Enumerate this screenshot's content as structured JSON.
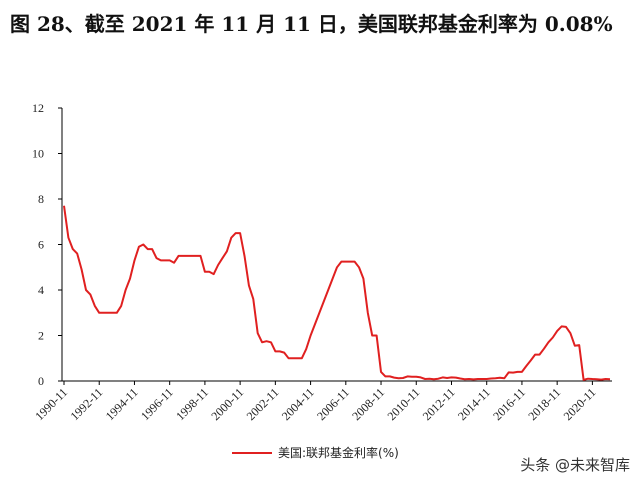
{
  "chart_data": {
    "type": "line",
    "title": "图 28、截至 2021 年 11 月 11 日，美国联邦基金利率为 0.08%",
    "x": [
      "1990-11",
      "1991-02",
      "1991-05",
      "1991-08",
      "1991-11",
      "1992-02",
      "1992-05",
      "1992-08",
      "1992-11",
      "1993-02",
      "1993-05",
      "1993-08",
      "1993-11",
      "1994-02",
      "1994-05",
      "1994-08",
      "1994-11",
      "1995-02",
      "1995-05",
      "1995-08",
      "1995-11",
      "1996-02",
      "1996-05",
      "1996-08",
      "1996-11",
      "1997-02",
      "1997-05",
      "1997-08",
      "1997-11",
      "1998-02",
      "1998-05",
      "1998-08",
      "1998-11",
      "1999-02",
      "1999-05",
      "1999-08",
      "1999-11",
      "2000-02",
      "2000-05",
      "2000-08",
      "2000-11",
      "2001-02",
      "2001-05",
      "2001-08",
      "2001-11",
      "2002-02",
      "2002-05",
      "2002-08",
      "2002-11",
      "2003-02",
      "2003-05",
      "2003-08",
      "2003-11",
      "2004-02",
      "2004-05",
      "2004-08",
      "2004-11",
      "2005-02",
      "2005-05",
      "2005-08",
      "2005-11",
      "2006-02",
      "2006-05",
      "2006-08",
      "2006-11",
      "2007-02",
      "2007-05",
      "2007-08",
      "2007-11",
      "2008-02",
      "2008-05",
      "2008-08",
      "2008-11",
      "2009-02",
      "2009-05",
      "2009-08",
      "2009-11",
      "2010-02",
      "2010-05",
      "2010-08",
      "2010-11",
      "2011-02",
      "2011-05",
      "2011-08",
      "2011-11",
      "2012-02",
      "2012-05",
      "2012-08",
      "2012-11",
      "2013-02",
      "2013-05",
      "2013-08",
      "2013-11",
      "2014-02",
      "2014-05",
      "2014-08",
      "2014-11",
      "2015-02",
      "2015-05",
      "2015-08",
      "2015-11",
      "2016-02",
      "2016-05",
      "2016-08",
      "2016-11",
      "2017-02",
      "2017-05",
      "2017-08",
      "2017-11",
      "2018-02",
      "2018-05",
      "2018-08",
      "2018-11",
      "2019-02",
      "2019-05",
      "2019-08",
      "2019-11",
      "2020-02",
      "2020-05",
      "2020-08",
      "2020-11",
      "2021-02",
      "2021-05",
      "2021-08",
      "2021-11"
    ],
    "series": [
      {
        "name": "美国:联邦基金利率(%)",
        "color": "#e02020",
        "values": [
          7.7,
          6.3,
          5.8,
          5.6,
          4.9,
          4.0,
          3.8,
          3.3,
          3.0,
          3.0,
          3.0,
          3.0,
          3.0,
          3.3,
          4.0,
          4.5,
          5.3,
          5.9,
          6.0,
          5.8,
          5.8,
          5.4,
          5.3,
          5.3,
          5.3,
          5.2,
          5.5,
          5.5,
          5.5,
          5.5,
          5.5,
          5.5,
          4.8,
          4.8,
          4.7,
          5.1,
          5.4,
          5.7,
          6.3,
          6.5,
          6.5,
          5.5,
          4.2,
          3.6,
          2.1,
          1.7,
          1.75,
          1.7,
          1.3,
          1.3,
          1.25,
          1.0,
          1.0,
          1.0,
          1.0,
          1.4,
          2.0,
          2.5,
          3.0,
          3.5,
          4.0,
          4.5,
          5.0,
          5.25,
          5.25,
          5.25,
          5.25,
          5.0,
          4.5,
          3.0,
          2.0,
          2.0,
          0.4,
          0.2,
          0.2,
          0.15,
          0.12,
          0.13,
          0.2,
          0.19,
          0.19,
          0.16,
          0.09,
          0.1,
          0.08,
          0.1,
          0.16,
          0.13,
          0.16,
          0.15,
          0.11,
          0.08,
          0.09,
          0.07,
          0.09,
          0.09,
          0.09,
          0.11,
          0.12,
          0.14,
          0.12,
          0.38,
          0.37,
          0.4,
          0.4,
          0.66,
          0.9,
          1.16,
          1.16,
          1.42,
          1.7,
          1.91,
          2.2,
          2.4,
          2.38,
          2.1,
          1.55,
          1.58,
          0.05,
          0.1,
          0.09,
          0.08,
          0.06,
          0.09,
          0.08
        ]
      }
    ],
    "xticks": [
      "1990-11",
      "1992-11",
      "1994-11",
      "1996-11",
      "1998-11",
      "2000-11",
      "2002-11",
      "2004-11",
      "2006-11",
      "2008-11",
      "2010-11",
      "2012-11",
      "2014-11",
      "2016-11",
      "2018-11",
      "2020-11"
    ],
    "ylim": [
      0,
      12
    ],
    "yticks": [
      0,
      2,
      4,
      6,
      8,
      10,
      12
    ],
    "grid": false,
    "legend": "bottom"
  },
  "watermark": "头条 @未来智库"
}
